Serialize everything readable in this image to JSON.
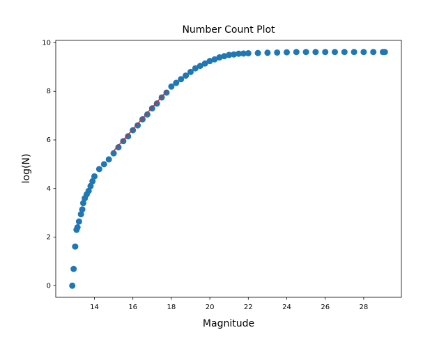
{
  "chart_data": {
    "type": "scatter",
    "title": "Number Count Plot",
    "x_label": "Magnitude",
    "y_label": "log(N)",
    "xlim": [
      11.99,
      29.96
    ],
    "ylim": [
      -0.48,
      10.1
    ],
    "xticks": [
      14,
      16,
      18,
      20,
      22,
      24,
      26,
      28
    ],
    "yticks": [
      0,
      2,
      4,
      6,
      8,
      10
    ],
    "series": [
      {
        "type": "scatter",
        "color": "#1f77b4",
        "x": [
          12.85,
          12.92,
          13.0,
          13.07,
          13.12,
          13.2,
          13.3,
          13.37,
          13.42,
          13.5,
          13.6,
          13.7,
          13.8,
          13.9,
          14.0,
          14.25,
          14.5,
          14.75,
          15.0,
          15.25,
          15.5,
          15.75,
          16.0,
          16.25,
          16.5,
          16.75,
          17.0,
          17.25,
          17.5,
          17.75,
          18.0,
          18.25,
          18.5,
          18.75,
          19.0,
          19.25,
          19.5,
          19.75,
          20.0,
          20.25,
          20.5,
          20.75,
          21.0,
          21.25,
          21.5,
          21.75,
          22.0,
          22.5,
          23.0,
          23.5,
          24.0,
          24.5,
          25.0,
          25.5,
          26.0,
          26.5,
          27.0,
          27.5,
          28.0,
          28.5,
          29.0,
          29.1
        ],
        "values": [
          0,
          0.69,
          1.61,
          2.3,
          2.4,
          2.64,
          2.94,
          3.14,
          3.4,
          3.6,
          3.76,
          3.9,
          4.1,
          4.3,
          4.5,
          4.8,
          5.0,
          5.2,
          5.45,
          5.7,
          5.95,
          6.15,
          6.4,
          6.6,
          6.85,
          7.05,
          7.3,
          7.5,
          7.75,
          7.95,
          8.2,
          8.35,
          8.5,
          8.65,
          8.8,
          8.95,
          9.05,
          9.15,
          9.25,
          9.32,
          9.4,
          9.45,
          9.5,
          9.52,
          9.55,
          9.56,
          9.57,
          9.58,
          9.59,
          9.6,
          9.61,
          9.62,
          9.62,
          9.62,
          9.62,
          9.62,
          9.62,
          9.62,
          9.62,
          9.62,
          9.62,
          9.62
        ]
      },
      {
        "type": "line",
        "color": "#d62728",
        "x": [
          15.0,
          17.8
        ],
        "values": [
          5.55,
          8.05
        ]
      }
    ]
  }
}
